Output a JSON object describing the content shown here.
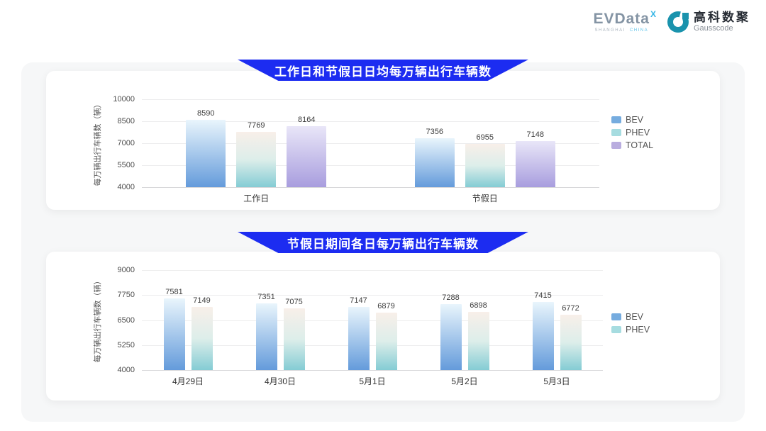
{
  "header": {
    "evdata": {
      "word": "EVData",
      "sup": "X",
      "sub1": "SHANGHAI",
      "sub2": "CHINA"
    },
    "gausscode": {
      "cn": "高科数聚",
      "en": "Gausscode",
      "color": "#1a93ad"
    }
  },
  "banner_color": "#1c2cf1",
  "chart_data": [
    {
      "type": "bar",
      "title": "工作日和节假日日均每万辆出行车辆数",
      "ylabel": "每万辆出行车辆数（辆）",
      "ylim": [
        4000,
        10000
      ],
      "yticks": [
        10000,
        8500,
        7000,
        5500,
        4000
      ],
      "grid": true,
      "legend_position": "right",
      "categories": [
        "工作日",
        "节假日"
      ],
      "series": [
        {
          "name": "BEV",
          "values": [
            8590,
            7356
          ],
          "legend_color": "#76acdf",
          "bar_top": "#e9f5fc",
          "bar_bottom": "#649bdb"
        },
        {
          "name": "PHEV",
          "values": [
            7769,
            6955
          ],
          "legend_color": "#a6dce0",
          "bar_top": "#f8efe9",
          "bar_mid": "#ddeeea",
          "bar_bottom": "#84ccd4"
        },
        {
          "name": "TOTAL",
          "values": [
            8164,
            7148
          ],
          "legend_color": "#b9addf",
          "bar_top": "#e9e6f8",
          "bar_bottom": "#a89dde"
        }
      ]
    },
    {
      "type": "bar",
      "title": "节假日期间各日每万辆出行车辆数",
      "ylabel": "每万辆出行车辆数（辆）",
      "ylim": [
        4000,
        9000
      ],
      "yticks": [
        9000,
        7750,
        6500,
        5250,
        4000
      ],
      "grid": true,
      "legend_position": "right",
      "categories": [
        "4月29日",
        "4月30日",
        "5月1日",
        "5月2日",
        "5月3日"
      ],
      "series": [
        {
          "name": "BEV",
          "values": [
            7581,
            7351,
            7147,
            7288,
            7415
          ],
          "legend_color": "#76acdf",
          "bar_top": "#e9f5fc",
          "bar_bottom": "#649bdb"
        },
        {
          "name": "PHEV",
          "values": [
            7149,
            7075,
            6879,
            6898,
            6772
          ],
          "legend_color": "#a6dce0",
          "bar_top": "#f8efe9",
          "bar_mid": "#ddeeea",
          "bar_bottom": "#84ccd4"
        }
      ]
    }
  ]
}
